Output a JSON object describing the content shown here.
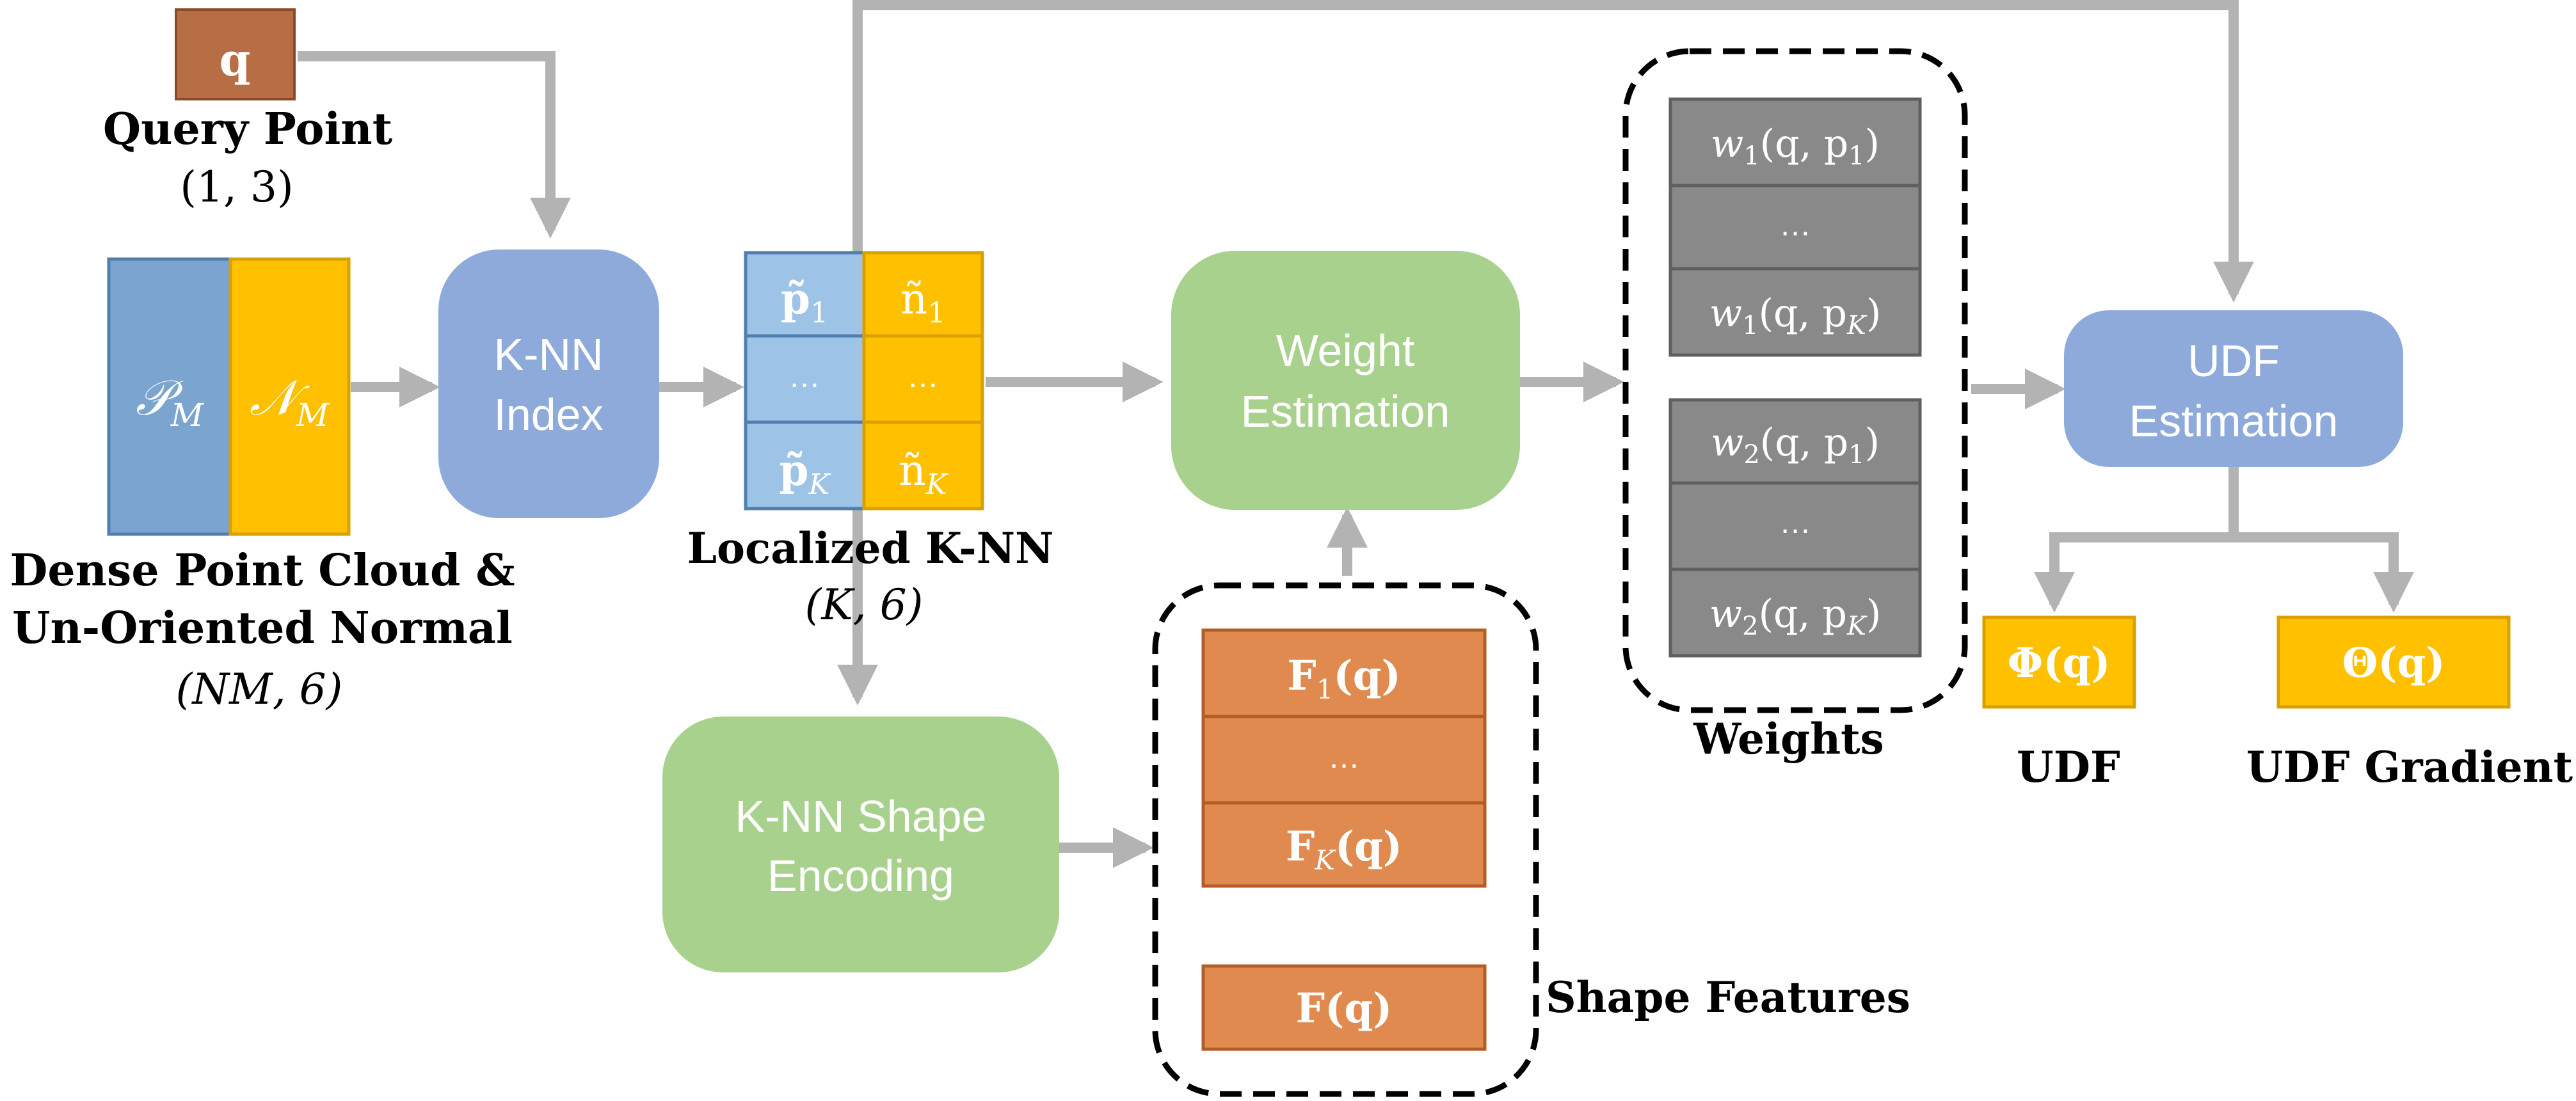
{
  "query": {
    "box_label": "q",
    "title": "Query Point",
    "shape": "(1, 3)"
  },
  "point_cloud": {
    "col_p": "𝒫",
    "col_p_sub": "M",
    "col_n": "𝒩",
    "col_n_sub": "M",
    "caption_line1": "Dense Point Cloud &",
    "caption_line2": "Un-Oriented Normal",
    "shape": "(NM, 6)"
  },
  "knn_index": {
    "line1": "K-NN",
    "line2": "Index"
  },
  "localized_knn": {
    "p1": "p̃",
    "p1_sub": "1",
    "n1": "ñ",
    "n1_sub": "1",
    "ellipsis": "…",
    "pk": "p̃",
    "pk_sub": "K",
    "nk": "ñ",
    "nk_sub": "K",
    "caption": "Localized K-NN",
    "shape": "(K, 6)"
  },
  "weight_estimation": {
    "line1": "Weight",
    "line2": "Estimation"
  },
  "knn_shape_encoding": {
    "line1": "K-NN Shape",
    "line2": "Encoding"
  },
  "shape_features": {
    "f1": "F",
    "f1_sub": "1",
    "f1_arg": "(q)",
    "ellipsis": "…",
    "fk": "F",
    "fk_sub": "K",
    "fk_arg": "(q)",
    "f": "F(q)",
    "caption": "Shape Features"
  },
  "weights": {
    "group1": {
      "top": "w",
      "top_sub": "1",
      "top_args": "(q, p",
      "top_args_sub": "1",
      "ellipsis": "…",
      "bottom": "w",
      "bottom_sub": "1",
      "bottom_args": "(q, p",
      "bottom_args_sub": "K"
    },
    "group2": {
      "top": "w",
      "top_sub": "2",
      "top_args": "(q, p",
      "top_args_sub": "1",
      "ellipsis": "…",
      "bottom": "w",
      "bottom_sub": "2",
      "bottom_args": "(q, p",
      "bottom_args_sub": "K"
    },
    "caption": "Weights"
  },
  "udf_estimation": {
    "line1": "UDF",
    "line2": "Estimation"
  },
  "outputs": {
    "udf_symbol": "Φ(q)",
    "udf_caption": "UDF",
    "grad_symbol": "Θ(q)",
    "grad_caption": "UDF Gradient"
  },
  "colors": {
    "arrow": "#b3b3b3",
    "blue_box": "#8eaadb",
    "green_box": "#a9d18e",
    "point_blue": "#7ba4cf",
    "normal_yellow": "#ffc000",
    "feature_orange": "#e18a4f",
    "weight_gray": "#898989",
    "query_brown": "#b86e45"
  }
}
